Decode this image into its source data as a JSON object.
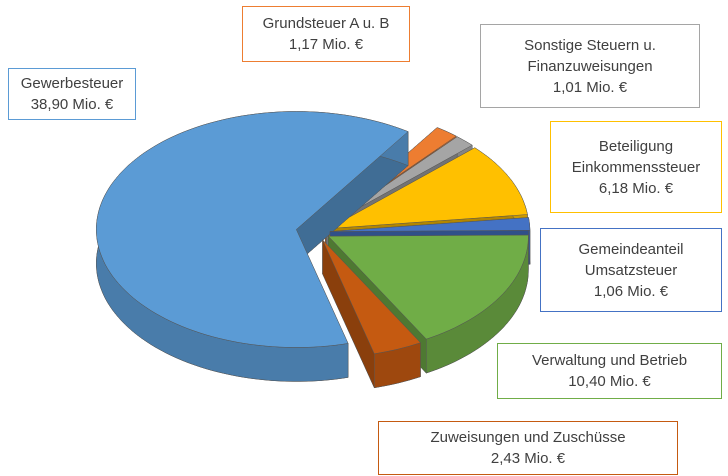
{
  "chart_data": {
    "type": "pie3d",
    "categories": [
      "Gewerbesteuer",
      "Grundsteuer A u. B",
      "Sonstige Steuern u. Finanzuweisungen",
      "Beteiligung Einkommenssteuer",
      "Gemeindeanteil Umsatzsteuer",
      "Verwaltung und Betrieb",
      "Zuweisungen und Zuschüsse"
    ],
    "values": [
      38.9,
      1.17,
      1.01,
      6.18,
      1.06,
      10.4,
      2.43
    ],
    "value_labels": [
      "38,90 Mio. €",
      "1,17 Mio. €",
      "1,01 Mio. €",
      "6,18 Mio. €",
      "1,06 Mio. €",
      "10,40 Mio. €",
      "2,43 Mio. €"
    ],
    "colors": [
      "#5b9bd5",
      "#ed7d31",
      "#a5a5a5",
      "#ffc000",
      "#4472c4",
      "#70ad47",
      "#c55a11"
    ]
  }
}
